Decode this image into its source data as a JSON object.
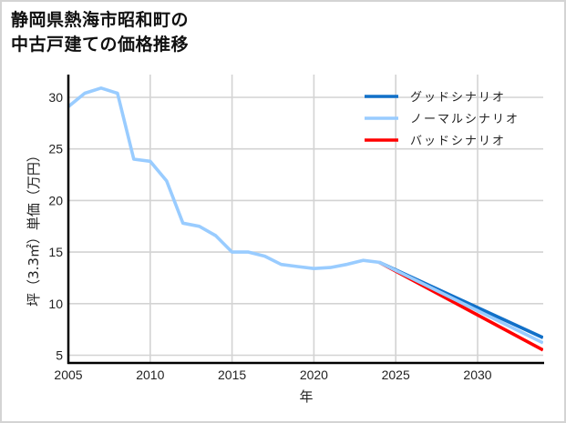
{
  "title": {
    "line1": "静岡県熱海市昭和町の",
    "line2": "中古戸建ての価格推移"
  },
  "chart_data": {
    "type": "line",
    "title": "静岡県熱海市昭和町の中古戸建ての価格推移",
    "xlabel": "年",
    "ylabel": "坪（3.3㎡）単価（万円）",
    "xlim": [
      2005,
      2034
    ],
    "ylim": [
      4.3,
      32.2
    ],
    "xticks": [
      2005,
      2010,
      2015,
      2020,
      2025,
      2030
    ],
    "yticks": [
      5,
      10,
      15,
      20,
      25,
      30
    ],
    "grid": true,
    "legend_position": "upper right",
    "series": [
      {
        "name": "グッドシナリオ",
        "color": "#1170c8",
        "x": [
          2024,
          2034
        ],
        "values": [
          14.0,
          6.7
        ]
      },
      {
        "name": "ノーマルシナリオ",
        "color": "#99ccff",
        "x": [
          2005,
          2006,
          2007,
          2008,
          2009,
          2010,
          2011,
          2012,
          2013,
          2014,
          2015,
          2016,
          2017,
          2018,
          2019,
          2020,
          2021,
          2022,
          2023,
          2024,
          2034
        ],
        "values": [
          29.1,
          30.4,
          30.9,
          30.4,
          24.0,
          23.8,
          21.9,
          17.8,
          17.5,
          16.6,
          15.0,
          15.0,
          14.6,
          13.8,
          13.6,
          13.4,
          13.5,
          13.8,
          14.2,
          14.0,
          6.2
        ]
      },
      {
        "name": "バッドシナリオ",
        "color": "#ff0000",
        "x": [
          2024,
          2034
        ],
        "values": [
          14.0,
          5.5
        ]
      }
    ]
  },
  "axes": {
    "xlabel": "年",
    "ylabel": "坪（3.3㎡）単価（万円）"
  }
}
